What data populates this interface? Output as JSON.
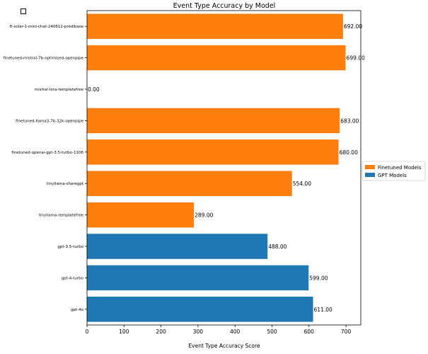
{
  "chart_data": {
    "type": "bar",
    "orientation": "horizontal",
    "title": "Event Type Accuracy by Model",
    "xlabel": "Event Type Accuracy Score",
    "ylabel": "",
    "xlim": [
      0,
      740
    ],
    "xticks": [
      0,
      100,
      200,
      300,
      400,
      500,
      600,
      700
    ],
    "grid": false,
    "legend_position": "right",
    "legend": [
      {
        "name": "Finetuned Models",
        "color": "#ff7f0e"
      },
      {
        "name": "GPT Models",
        "color": "#1f77b4"
      }
    ],
    "bars": [
      {
        "category": "ft-solar-1-mini-chat-240612-predibase",
        "value": 692,
        "label": "692.00",
        "group": "Finetuned Models"
      },
      {
        "category": "finetuned-mistral-7b-optimised-openpipe",
        "value": 699,
        "label": "699.00",
        "group": "Finetuned Models"
      },
      {
        "category": "mistral-lora-templatefree",
        "value": 0,
        "label": "0.00",
        "group": "Finetuned Models"
      },
      {
        "category": "finetuned-llama3-7b-32k-openpipe",
        "value": 683,
        "label": "683.00",
        "group": "Finetuned Models"
      },
      {
        "category": "finetuned-openai-gpt-3.5-turbo-1106",
        "value": 680,
        "label": "680.00",
        "group": "Finetuned Models"
      },
      {
        "category": "tinyllama-sharegpt",
        "value": 554,
        "label": "554.00",
        "group": "Finetuned Models"
      },
      {
        "category": "tinyllama-templatefree",
        "value": 289,
        "label": "289.00",
        "group": "Finetuned Models"
      },
      {
        "category": "gpt-3.5-turbo",
        "value": 488,
        "label": "488.00",
        "group": "GPT Models"
      },
      {
        "category": "gpt-4-turbo",
        "value": 599,
        "label": "599.00",
        "group": "GPT Models"
      },
      {
        "category": "gpt-4o",
        "value": 611,
        "label": "611.00",
        "group": "GPT Models"
      }
    ]
  }
}
